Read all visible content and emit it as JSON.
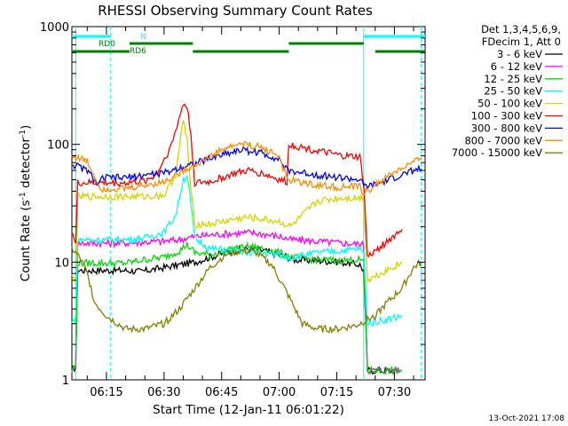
{
  "chart_data": {
    "type": "line",
    "title": "RHESSI Observing Summary Count Rates",
    "xlabel": "Start Time (12-Jan-11 06:01:22)",
    "ylabel_main": "Count Rate (s",
    "ylabel_sup1": "-1",
    "ylabel_mid": " detector",
    "ylabel_sup2": "-1",
    "ylabel_end": ")",
    "yscale": "log",
    "ylim": [
      1,
      1000
    ],
    "xlim_minutes": [
      6.0,
      98.0
    ],
    "y_ticks": [
      {
        "value": 1,
        "label": "1"
      },
      {
        "value": 10,
        "label": "10"
      },
      {
        "value": 100,
        "label": "100"
      },
      {
        "value": 1000,
        "label": "1000"
      }
    ],
    "x_ticks": [
      {
        "minutes": 15,
        "label": "06:15"
      },
      {
        "minutes": 30,
        "label": "06:30"
      },
      {
        "minutes": 45,
        "label": "06:45"
      },
      {
        "minutes": 60,
        "label": "07:00"
      },
      {
        "minutes": 75,
        "label": "07:15"
      },
      {
        "minutes": 90,
        "label": "07:30"
      }
    ],
    "legend_header": [
      "Det 1,3,4,5,6,9,",
      "FDecim 1, Att 0"
    ],
    "series": [
      {
        "name": "3 - 6 keV",
        "color": "#000000",
        "points": [
          [
            6,
            1.2
          ],
          [
            7,
            1.3
          ],
          [
            7.5,
            8.5
          ],
          [
            20,
            8.5
          ],
          [
            24,
            8.3
          ],
          [
            30,
            9
          ],
          [
            35,
            9.6
          ],
          [
            38,
            10
          ],
          [
            42,
            11
          ],
          [
            48,
            12.5
          ],
          [
            52,
            13
          ],
          [
            56,
            12.5
          ],
          [
            60,
            11.5
          ],
          [
            62,
            11.2
          ],
          [
            63,
            10.5
          ],
          [
            70,
            10.3
          ],
          [
            76,
            10
          ],
          [
            81,
            9.5
          ],
          [
            82,
            8.5
          ],
          [
            83,
            1.2
          ],
          [
            92,
            1.2
          ]
        ]
      },
      {
        "name": "6 - 12 keV",
        "color": "#ff00ff",
        "points": [
          [
            6,
            1.2
          ],
          [
            7,
            1.3
          ],
          [
            7.5,
            14.5
          ],
          [
            20,
            14.5
          ],
          [
            25,
            14.8
          ],
          [
            30,
            15
          ],
          [
            34,
            15.5
          ],
          [
            38,
            16.5
          ],
          [
            42,
            17
          ],
          [
            48,
            17.5
          ],
          [
            52,
            17.8
          ],
          [
            56,
            17.3
          ],
          [
            60,
            16.5
          ],
          [
            63,
            15.5
          ],
          [
            70,
            15
          ],
          [
            76,
            14.5
          ],
          [
            81,
            14.2
          ],
          [
            82,
            14
          ],
          [
            83,
            1.2
          ],
          [
            92,
            1.2
          ]
        ]
      },
      {
        "name": "12 - 25 keV",
        "color": "#00dd00",
        "points": [
          [
            6,
            1.2
          ],
          [
            7,
            1.3
          ],
          [
            7.5,
            9.8
          ],
          [
            20,
            9.8
          ],
          [
            25,
            10.5
          ],
          [
            30,
            11
          ],
          [
            34,
            12.5
          ],
          [
            36,
            14
          ],
          [
            38,
            12
          ],
          [
            42,
            11.5
          ],
          [
            48,
            13
          ],
          [
            52,
            13.5
          ],
          [
            56,
            13
          ],
          [
            60,
            12
          ],
          [
            63,
            11
          ],
          [
            70,
            10.5
          ],
          [
            76,
            10.3
          ],
          [
            81,
            10.5
          ],
          [
            82,
            10
          ],
          [
            83,
            1.2
          ],
          [
            92,
            1.2
          ]
        ]
      },
      {
        "name": "25 - 50 keV",
        "color": "#00ffff",
        "points": [
          [
            6,
            3
          ],
          [
            7,
            3.5
          ],
          [
            7.5,
            15.5
          ],
          [
            20,
            15.5
          ],
          [
            25,
            16
          ],
          [
            30,
            18
          ],
          [
            33,
            25
          ],
          [
            35,
            50
          ],
          [
            36,
            55
          ],
          [
            37,
            30
          ],
          [
            38,
            16
          ],
          [
            42,
            13
          ],
          [
            48,
            12.5
          ],
          [
            52,
            12
          ],
          [
            56,
            12
          ],
          [
            60,
            11.5
          ],
          [
            63,
            11
          ],
          [
            70,
            12
          ],
          [
            76,
            12.5
          ],
          [
            81,
            13
          ],
          [
            82,
            12
          ],
          [
            83,
            3
          ],
          [
            92,
            3.5
          ]
        ]
      },
      {
        "name": "50 - 100 keV",
        "color": "#d4d400",
        "points": [
          [
            6,
            7.5
          ],
          [
            7,
            7
          ],
          [
            7.5,
            36
          ],
          [
            20,
            36
          ],
          [
            25,
            36
          ],
          [
            30,
            37
          ],
          [
            33,
            55
          ],
          [
            35,
            160
          ],
          [
            36,
            110
          ],
          [
            37,
            40
          ],
          [
            38,
            21
          ],
          [
            42,
            21
          ],
          [
            48,
            23
          ],
          [
            52,
            24
          ],
          [
            56,
            23
          ],
          [
            60,
            22
          ],
          [
            63,
            20
          ],
          [
            70,
            33
          ],
          [
            76,
            35
          ],
          [
            81,
            35
          ],
          [
            82,
            36
          ],
          [
            83,
            7
          ],
          [
            92,
            10
          ]
        ]
      },
      {
        "name": "100 - 300 keV",
        "color": "#ff0000",
        "points": [
          [
            6,
            19
          ],
          [
            7,
            14
          ],
          [
            7.5,
            47
          ],
          [
            20,
            47
          ],
          [
            25,
            49
          ],
          [
            28,
            55
          ],
          [
            32,
            100
          ],
          [
            35,
            220
          ],
          [
            36,
            210
          ],
          [
            37,
            120
          ],
          [
            38,
            47
          ],
          [
            42,
            48
          ],
          [
            48,
            56
          ],
          [
            52,
            60
          ],
          [
            56,
            56
          ],
          [
            60,
            50
          ],
          [
            62,
            48
          ],
          [
            62.5,
            100
          ],
          [
            70,
            88
          ],
          [
            76,
            80
          ],
          [
            81,
            78
          ],
          [
            82,
            47
          ],
          [
            83,
            11
          ],
          [
            92,
            19
          ]
        ]
      },
      {
        "name": "300 - 800 keV",
        "color": "#0000ff",
        "points": [
          [
            6,
            68
          ],
          [
            10,
            60
          ],
          [
            13,
            45
          ],
          [
            14,
            52
          ],
          [
            20,
            52
          ],
          [
            25,
            55
          ],
          [
            30,
            57
          ],
          [
            35,
            65
          ],
          [
            40,
            72
          ],
          [
            45,
            82
          ],
          [
            50,
            90
          ],
          [
            55,
            85
          ],
          [
            60,
            75
          ],
          [
            62,
            60
          ],
          [
            70,
            55
          ],
          [
            76,
            52
          ],
          [
            81,
            50
          ],
          [
            82,
            44
          ],
          [
            85,
            45
          ],
          [
            90,
            52
          ],
          [
            95,
            60
          ],
          [
            97,
            62
          ]
        ]
      },
      {
        "name": "800 - 7000 keV",
        "color": "#ff8c00",
        "points": [
          [
            6,
            80
          ],
          [
            10,
            72
          ],
          [
            13,
            45
          ],
          [
            14,
            42
          ],
          [
            20,
            42
          ],
          [
            25,
            45
          ],
          [
            30,
            48
          ],
          [
            35,
            60
          ],
          [
            40,
            72
          ],
          [
            45,
            90
          ],
          [
            50,
            102
          ],
          [
            55,
            95
          ],
          [
            60,
            80
          ],
          [
            62,
            50
          ],
          [
            70,
            45
          ],
          [
            76,
            43
          ],
          [
            81,
            44
          ],
          [
            82,
            38
          ],
          [
            85,
            45
          ],
          [
            90,
            58
          ],
          [
            95,
            70
          ],
          [
            97,
            75
          ]
        ]
      },
      {
        "name": "7000 - 15000 keV",
        "color": "#808000",
        "points": [
          [
            6,
            13
          ],
          [
            8,
            11
          ],
          [
            10,
            8
          ],
          [
            12,
            4.5
          ],
          [
            15,
            3.5
          ],
          [
            20,
            2.7
          ],
          [
            25,
            2.7
          ],
          [
            30,
            3
          ],
          [
            34,
            4
          ],
          [
            38,
            6
          ],
          [
            42,
            9
          ],
          [
            46,
            11.5
          ],
          [
            50,
            12.5
          ],
          [
            54,
            12
          ],
          [
            58,
            9.5
          ],
          [
            62,
            5.5
          ],
          [
            66,
            3
          ],
          [
            70,
            2.7
          ],
          [
            75,
            2.7
          ],
          [
            80,
            2.9
          ],
          [
            85,
            3.5
          ],
          [
            88,
            4.5
          ],
          [
            92,
            6
          ],
          [
            95,
            9
          ],
          [
            97,
            10
          ]
        ]
      }
    ],
    "status_bars": [
      {
        "label": "N",
        "color": "#00ffff"
      },
      {
        "label": "RD0",
        "color": "#008000"
      },
      {
        "label": "RD6",
        "color": "#008000"
      }
    ],
    "status_segments": [
      {
        "flag": "N",
        "row": 1,
        "color": "#00ffff",
        "from": 6,
        "to": 16
      },
      {
        "flag": "N",
        "row": 1,
        "color": "#00ffff",
        "from": 82,
        "to": 98
      },
      {
        "flag": "RD0",
        "row": 2,
        "color": "#008000",
        "from": 21,
        "to": 37.5
      },
      {
        "flag": "RD0",
        "row": 2,
        "color": "#008000",
        "from": 62.5,
        "to": 82
      },
      {
        "flag": "RD6",
        "row": 3,
        "color": "#008000",
        "from": 6,
        "to": 21
      },
      {
        "flag": "RD6",
        "row": 3,
        "color": "#008000",
        "from": 37.5,
        "to": 62.5
      },
      {
        "flag": "RD6",
        "row": 3,
        "color": "#008000",
        "from": 85,
        "to": 98
      }
    ],
    "night_boundaries_minutes": [
      {
        "minutes": 7,
        "style": "solid"
      },
      {
        "minutes": 16,
        "style": "dashed"
      },
      {
        "minutes": 82,
        "style": "solid"
      },
      {
        "minutes": 97,
        "style": "dashed"
      }
    ],
    "date_stamp": "13-Oct-2021 17:08",
    "grid": false,
    "legend_position": "right"
  }
}
